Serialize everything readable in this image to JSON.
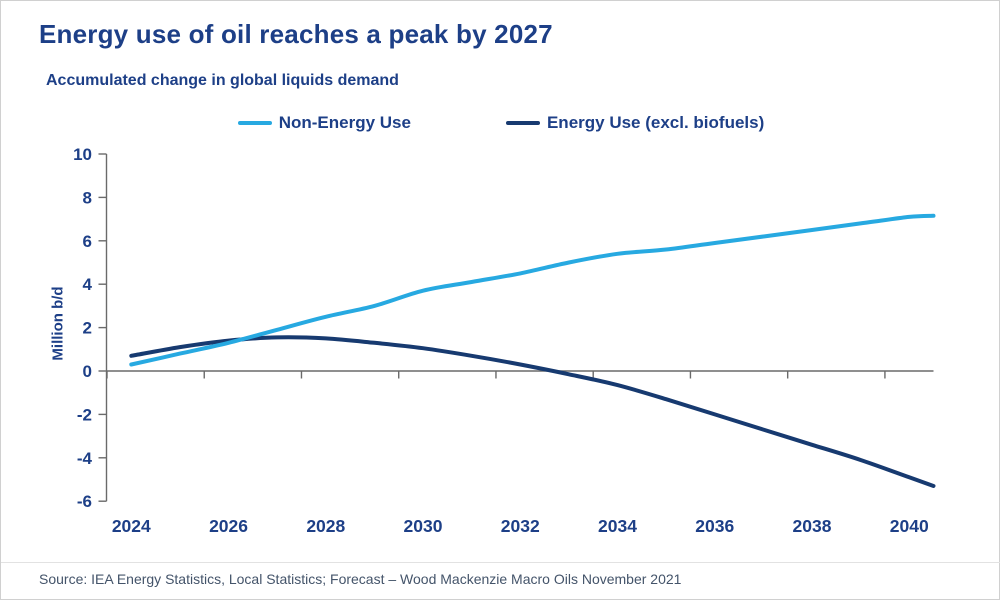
{
  "header": {
    "title": "Energy use of oil reaches a peak by 2027",
    "subtitle": "Accumulated change in global liquids demand"
  },
  "footer": {
    "source": "Source: IEA Energy Statistics, Local Statistics; Forecast – Wood Mackenzie Macro Oils November 2021"
  },
  "colors": {
    "text_navy": "#1d3f87",
    "non_energy_blue": "#27a9e1",
    "energy_navy": "#173a70",
    "axis_gray": "#6a6a6a",
    "source_gray": "#44546a"
  },
  "chart_data": {
    "type": "line",
    "title": "Energy use of oil reaches a peak by 2027",
    "subtitle": "Accumulated change in global liquids demand",
    "ylabel": "Million b/d",
    "xlabel": "",
    "ylim": [
      -6,
      10
    ],
    "ytick_step": 2,
    "ytick_labels": [
      "10",
      "8",
      "6",
      "4",
      "2",
      "0",
      "-2",
      "-4",
      "-6"
    ],
    "xtick_labels": [
      "2024",
      "2026",
      "2028",
      "2030",
      "2032",
      "2034",
      "2036",
      "2038",
      "2040"
    ],
    "x_range": [
      2023.5,
      2040.5
    ],
    "grid": false,
    "legend_position": "top",
    "x": [
      2024,
      2025,
      2026,
      2027,
      2028,
      2029,
      2030,
      2031,
      2032,
      2033,
      2034,
      2035,
      2036,
      2037,
      2038,
      2039,
      2040,
      2040.5
    ],
    "series": [
      {
        "name": "Energy Use (excl. biofuels)",
        "color": "#173a70",
        "values": [
          0.7,
          1.1,
          1.4,
          1.55,
          1.5,
          1.3,
          1.05,
          0.7,
          0.3,
          -0.15,
          -0.65,
          -1.3,
          -2.0,
          -2.7,
          -3.4,
          -4.1,
          -4.9,
          -5.3
        ]
      },
      {
        "name": "Non-Energy Use",
        "color": "#27a9e1",
        "values": [
          0.3,
          0.8,
          1.3,
          1.9,
          2.5,
          3.0,
          3.7,
          4.1,
          4.5,
          5.0,
          5.4,
          5.6,
          5.9,
          6.2,
          6.5,
          6.8,
          7.1,
          7.15
        ]
      }
    ],
    "legend_order": [
      "Non-Energy Use",
      "Energy Use (excl. biofuels)"
    ]
  }
}
